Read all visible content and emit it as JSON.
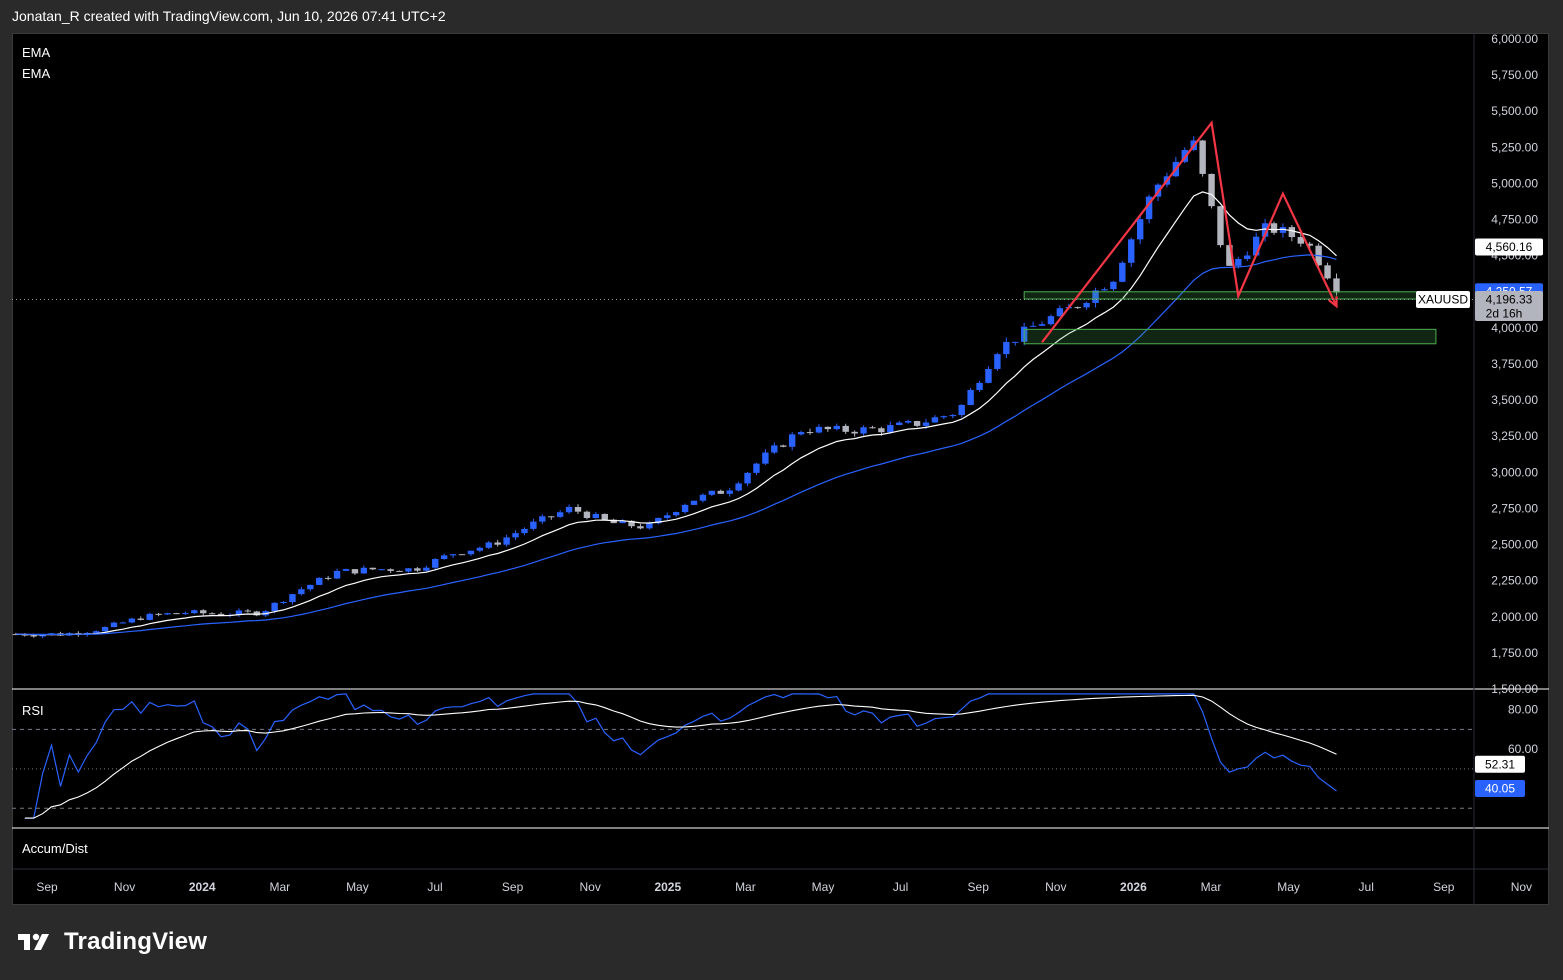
{
  "header": {
    "caption": "Jonatan_R created with TradingView.com, Jun 10, 2026 07:41 UTC+2"
  },
  "brand": {
    "logo_text": "TradingView"
  },
  "colors": {
    "candle_up": "#2962ff",
    "candle_down": "#b2b5be",
    "ema_fast": "#ffffff",
    "ema_slow": "#2962ff",
    "pattern": "#f23645",
    "zone": "#4caf50"
  },
  "icons": [
    "tradingview-logo-icon"
  ],
  "chart_data": [
    {
      "type": "line",
      "symbol": "XAUUSD",
      "indicators": [
        "EMA",
        "EMA"
      ],
      "y_axis_labels": [
        "6,000.00",
        "5,750.00",
        "5,500.00",
        "5,250.00",
        "5,000.00",
        "4,750.00",
        "4,500.00",
        "4,250.00",
        "4,000.00",
        "3,750.00",
        "3,500.00",
        "3,250.00",
        "3,000.00",
        "2,750.00",
        "2,500.00",
        "2,250.00",
        "2,000.00",
        "1,750.00",
        "1,500.00"
      ],
      "ylim": [
        1500,
        6000
      ],
      "x_axis_labels": [
        "Sep",
        "Nov",
        "2024",
        "Mar",
        "May",
        "Jul",
        "Sep",
        "Nov",
        "2025",
        "Mar",
        "May",
        "Jul",
        "Sep",
        "Nov",
        "2026",
        "Mar",
        "May",
        "Jul",
        "Sep",
        "Nov"
      ],
      "price_tags": [
        {
          "label": "4,560.16",
          "value": 4560.16,
          "kind": "ema-fast"
        },
        {
          "label": "4,250.57",
          "value": 4250.57,
          "kind": "ema-slow"
        },
        {
          "label": "4,196.33",
          "value": 4196.33,
          "kind": "last"
        }
      ],
      "countdown": "2d 16h",
      "series": [
        {
          "name": "XAUUSD",
          "approx_close_by_month": {
            "x": [
              "2023-09",
              "2023-10",
              "2023-11",
              "2023-12",
              "2024-01",
              "2024-02",
              "2024-03",
              "2024-04",
              "2024-05",
              "2024-06",
              "2024-07",
              "2024-08",
              "2024-09",
              "2024-10",
              "2024-11",
              "2024-12",
              "2025-01",
              "2025-02",
              "2025-03",
              "2025-04",
              "2025-05",
              "2025-06",
              "2025-07",
              "2025-08",
              "2025-09",
              "2025-10",
              "2025-11",
              "2025-12",
              "2026-01",
              "2026-02",
              "2026-03",
              "2026-04",
              "2026-05",
              "2026-06"
            ],
            "values": [
              1880,
              1920,
              2000,
              2030,
              2020,
              2030,
              2180,
              2310,
              2330,
              2330,
              2440,
              2500,
              2640,
              2750,
              2650,
              2620,
              2800,
              2880,
              3100,
              3300,
              3290,
              3300,
              3340,
              3420,
              3850,
              4020,
              4150,
              4350,
              4950,
              5300,
              4400,
              4700,
              4600,
              4196
            ]
          }
        }
      ],
      "pattern_points": [
        {
          "x": "2025-10-20",
          "y": 3900
        },
        {
          "x": "2026-03-02",
          "y": 5420
        },
        {
          "x": "2026-03-23",
          "y": 4220
        },
        {
          "x": "2026-04-27",
          "y": 4930
        },
        {
          "x": "2026-06-08",
          "y": 4150
        }
      ],
      "zones": [
        {
          "from": 4200,
          "to": 4250
        },
        {
          "from": 3890,
          "to": 3990
        }
      ]
    },
    {
      "type": "line",
      "title": "RSI",
      "y_axis_labels": [
        "80.00",
        "60.00"
      ],
      "levels": [
        70,
        50,
        30
      ],
      "ylim": [
        20,
        90
      ],
      "value_tags": [
        {
          "label": "52.31",
          "value": 52.31,
          "kind": "rsi-ma"
        },
        {
          "label": "40.05",
          "value": 40.05,
          "kind": "rsi"
        }
      ]
    },
    {
      "type": "line",
      "title": "Accum/Dist"
    }
  ]
}
